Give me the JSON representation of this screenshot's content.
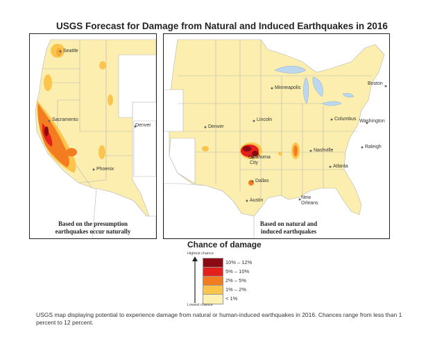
{
  "title": "USGS Forecast for Damage from Natural and Induced Earthquakes in 2016",
  "left_panel": {
    "cities": [
      "Seattle",
      "Sacramento",
      "Denver",
      "Phoenix"
    ],
    "caption_line1": "Based on the presumption",
    "caption_line2": "earthquakes occur naturally"
  },
  "right_panel": {
    "cities": [
      "Minneapolis",
      "Boston",
      "Lincoln",
      "Columbus",
      "Washington",
      "Denver",
      "Nashville",
      "Raleigh",
      "Oklahoma",
      "City",
      "Atlanta",
      "Dallas",
      "Austin",
      "New",
      "Orleans"
    ],
    "caption_line1": "Based on natural and",
    "caption_line2": "induced earthquakes"
  },
  "legend": {
    "title": "Chance of damage",
    "highest": "Highest chance",
    "lowest": "Lowest chance",
    "items": [
      {
        "label": "10% – 12%",
        "color": "#8b0a14"
      },
      {
        "label": "5% – 10%",
        "color": "#e3201b"
      },
      {
        "label": "2% – 5%",
        "color": "#f47c20"
      },
      {
        "label": "1% – 2%",
        "color": "#fbc44d"
      },
      {
        "label": "< 1%",
        "color": "#fdf0b3"
      }
    ]
  },
  "colors": {
    "land": "#fbeeaf",
    "no_data": "#ffffff",
    "water": "#bdd7ee"
  },
  "description": "USGS map displaying potential to experience damage from natural or human-induced earthquakes in 2016. Chances range from less than 1 percent to 12 percent."
}
